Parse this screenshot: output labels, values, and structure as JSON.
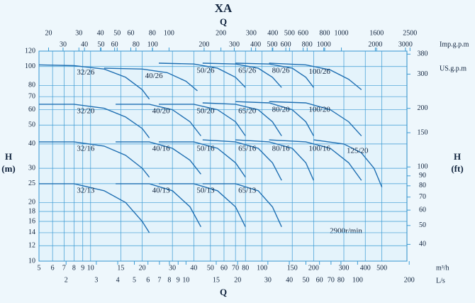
{
  "chart_data": {
    "type": "line",
    "title": "XA",
    "x_label": "Q",
    "x2_label": "Q",
    "y_label": [
      "H",
      "(m)"
    ],
    "y2_label": [
      "H",
      "(ft)"
    ],
    "x_unit": "m³/h",
    "log_x": true,
    "log_y": true,
    "grid": true,
    "color": "#1f6fb2",
    "annotation": "2900r/min",
    "xlim": [
      5,
      700
    ],
    "xticks": [
      5,
      6,
      7,
      8,
      9,
      10,
      15,
      20,
      30,
      40,
      50,
      60,
      70,
      80,
      100,
      150,
      200,
      300,
      400,
      500
    ],
    "ylim": [
      10,
      120
    ],
    "yticks": [
      10,
      12,
      14,
      16,
      18,
      20,
      25,
      30,
      40,
      50,
      60,
      70,
      80,
      100,
      120
    ],
    "y2lim": [
      32.8,
      394
    ],
    "y2ticks": [
      40,
      50,
      60,
      70,
      80,
      90,
      100,
      150,
      200,
      300,
      380
    ],
    "x_ls": {
      "label": "L/s",
      "lim": [
        1.39,
        194
      ],
      "ticks": [
        2,
        3,
        4,
        5,
        6,
        7,
        8,
        9,
        10,
        15,
        20,
        30,
        40,
        50,
        60,
        70,
        80,
        100,
        200
      ]
    },
    "x_usgpm": {
      "label": "US.g.p.m",
      "lim": [
        17.6,
        2400
      ],
      "ticks": [
        20,
        30,
        40,
        50,
        60,
        80,
        100,
        200,
        300,
        400,
        500,
        600,
        800,
        1000,
        1600,
        2500
      ]
    },
    "x_impgpm": {
      "label": "Imp.g.p.m",
      "lim": [
        21.7,
        3060
      ],
      "ticks": [
        30,
        40,
        50,
        60,
        80,
        100,
        200,
        300,
        400,
        500,
        600,
        800,
        1000,
        2000,
        3000
      ]
    },
    "series": [
      {
        "name": "32/26",
        "x": [
          5,
          8,
          12,
          16,
          20,
          22
        ],
        "values": [
          102,
          101,
          97,
          88,
          76,
          68
        ]
      },
      {
        "name": "32/20",
        "x": [
          5,
          8,
          12,
          16,
          20,
          22
        ],
        "values": [
          64,
          64,
          61,
          55,
          48,
          43
        ]
      },
      {
        "name": "32/16",
        "x": [
          5,
          8,
          12,
          16,
          20,
          22
        ],
        "values": [
          41,
          41,
          39,
          35,
          30,
          27
        ]
      },
      {
        "name": "32/13",
        "x": [
          5,
          8,
          12,
          16,
          20,
          22
        ],
        "values": [
          25,
          25,
          23,
          20,
          16,
          14
        ]
      },
      {
        "name": "40/26",
        "x": [
          12,
          20,
          28,
          36,
          42
        ],
        "values": [
          98,
          97,
          93,
          84,
          75
        ]
      },
      {
        "name": "40/20",
        "x": [
          14,
          22,
          30,
          38,
          44
        ],
        "values": [
          64,
          64,
          60,
          52,
          44
        ]
      },
      {
        "name": "40/16",
        "x": [
          14,
          22,
          30,
          38,
          44
        ],
        "values": [
          41,
          41,
          38,
          33,
          28
        ]
      },
      {
        "name": "40/13",
        "x": [
          14,
          22,
          30,
          38,
          44
        ],
        "values": [
          25,
          25,
          23,
          19,
          15
        ]
      },
      {
        "name": "50/26",
        "x": [
          25,
          40,
          55,
          70,
          80
        ],
        "values": [
          104,
          103,
          98,
          88,
          78
        ]
      },
      {
        "name": "50/20",
        "x": [
          25,
          40,
          55,
          70,
          80
        ],
        "values": [
          64,
          64,
          60,
          52,
          44
        ]
      },
      {
        "name": "50/16",
        "x": [
          25,
          40,
          55,
          70,
          80
        ],
        "values": [
          41,
          41,
          38,
          32,
          27
        ]
      },
      {
        "name": "50/13",
        "x": [
          25,
          40,
          55,
          70,
          80
        ],
        "values": [
          25,
          25,
          23,
          19,
          15
        ]
      },
      {
        "name": "65/26",
        "x": [
          45,
          70,
          95,
          115,
          130
        ],
        "values": [
          104,
          103,
          98,
          88,
          78
        ]
      },
      {
        "name": "65/20",
        "x": [
          45,
          70,
          95,
          115,
          130
        ],
        "values": [
          65,
          64,
          60,
          52,
          44
        ]
      },
      {
        "name": "65/16",
        "x": [
          45,
          70,
          95,
          115,
          130
        ],
        "values": [
          42,
          41,
          38,
          32,
          26
        ]
      },
      {
        "name": "65/13",
        "x": [
          45,
          70,
          95,
          115,
          130
        ],
        "values": [
          25,
          25,
          23,
          19,
          15
        ]
      },
      {
        "name": "80/26",
        "x": [
          70,
          110,
          150,
          180,
          200
        ],
        "values": [
          104,
          103,
          98,
          88,
          78
        ]
      },
      {
        "name": "80/20",
        "x": [
          70,
          110,
          150,
          180,
          200
        ],
        "values": [
          66,
          65,
          60,
          52,
          44
        ]
      },
      {
        "name": "80/16",
        "x": [
          70,
          110,
          150,
          180,
          200
        ],
        "values": [
          42,
          41,
          38,
          32,
          26
        ]
      },
      {
        "name": "100/26",
        "x": [
          110,
          180,
          250,
          320,
          380
        ],
        "values": [
          104,
          102,
          96,
          86,
          76
        ]
      },
      {
        "name": "100/20",
        "x": [
          110,
          180,
          250,
          320,
          380
        ],
        "values": [
          66,
          65,
          60,
          52,
          44
        ]
      },
      {
        "name": "100/16",
        "x": [
          110,
          180,
          250,
          320,
          380
        ],
        "values": [
          42,
          41,
          38,
          32,
          26
        ]
      },
      {
        "name": "125/20",
        "x": [
          200,
          300,
          380,
          450,
          500
        ],
        "values": [
          42,
          40,
          36,
          30,
          24
        ]
      }
    ]
  }
}
